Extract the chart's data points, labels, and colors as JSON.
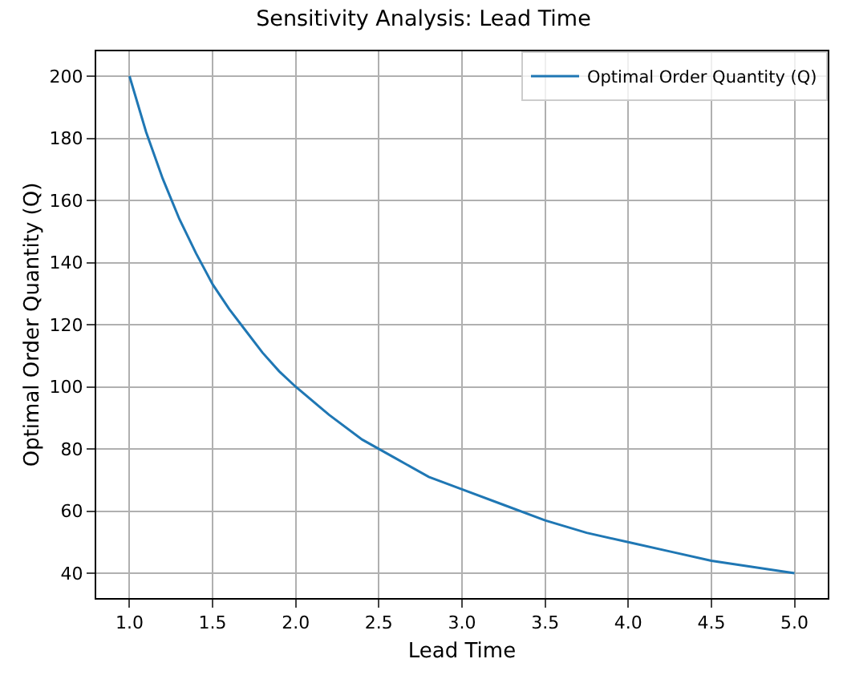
{
  "chart_data": {
    "type": "line",
    "title": "Sensitivity Analysis: Lead Time",
    "xlabel": "Lead Time",
    "ylabel": "Optimal Order Quantity (Q)",
    "series": [
      {
        "name": "Optimal Order Quantity (Q)",
        "color": "#1f77b4",
        "x": [
          1,
          1.1,
          1.2,
          1.3,
          1.4,
          1.5,
          1.6,
          1.7,
          1.8,
          1.9,
          2,
          2.2,
          2.4,
          2.6,
          2.8,
          3,
          3.25,
          3.5,
          3.75,
          4,
          4.25,
          4.5,
          4.75,
          5
        ],
        "values": [
          200,
          182,
          167,
          154,
          143,
          133,
          125,
          118,
          111,
          105,
          100,
          91,
          83,
          77,
          71,
          67,
          62,
          57,
          53,
          50,
          47,
          44,
          42,
          40
        ]
      }
    ],
    "xlim": [
      0.8,
      5.2
    ],
    "xticks": [
      {
        "value": 1,
        "label": "1.0"
      },
      {
        "value": 1.5,
        "label": "1.5"
      },
      {
        "value": 2,
        "label": "2.0"
      },
      {
        "value": 2.5,
        "label": "2.5"
      },
      {
        "value": 3,
        "label": "3.0"
      },
      {
        "value": 3.5,
        "label": "3.5"
      },
      {
        "value": 4,
        "label": "4.0"
      },
      {
        "value": 4.5,
        "label": "4.5"
      },
      {
        "value": 5,
        "label": "5.0"
      }
    ],
    "ylim": [
      32,
      208
    ],
    "yticks": [
      40,
      60,
      80,
      100,
      120,
      140,
      160,
      180,
      200
    ],
    "grid": true,
    "legend": "top right",
    "marker": "none",
    "line_style": "solid"
  }
}
